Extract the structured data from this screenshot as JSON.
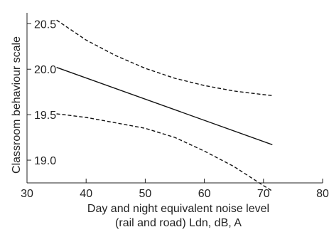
{
  "chart_data": {
    "type": "line",
    "title": "",
    "xlabel": [
      "Day and night equivalent noise level",
      "(rail and road) Ldn, dB, A"
    ],
    "ylabel": "Classroom behaviour scale",
    "xlim": [
      30,
      80
    ],
    "ylim": [
      18.75,
      20.62
    ],
    "x_ticks": [
      30,
      40,
      50,
      60,
      70,
      80
    ],
    "y_ticks": [
      19.0,
      19.5,
      20.0,
      20.5
    ],
    "x_tick_labels": [
      "30",
      "40",
      "50",
      "60",
      "70",
      "80"
    ],
    "y_tick_labels": [
      "19.0",
      "19.5",
      "20.0",
      "20.5"
    ],
    "grid": false,
    "legend": "none",
    "series": [
      {
        "role": "estimate",
        "style": "solid",
        "x": [
          35,
          71.5
        ],
        "y": [
          20.02,
          19.17
        ]
      },
      {
        "role": "upper-bound",
        "style": "dashed",
        "x": [
          35,
          40,
          45,
          50,
          55,
          60,
          65,
          70,
          71.5
        ],
        "y": [
          20.54,
          20.32,
          20.15,
          20.01,
          19.9,
          19.82,
          19.76,
          19.72,
          19.71
        ]
      },
      {
        "role": "lower-bound",
        "style": "dashed",
        "x": [
          35,
          40,
          45,
          50,
          55,
          60,
          65,
          70,
          71.5
        ],
        "y": [
          19.51,
          19.47,
          19.41,
          19.35,
          19.25,
          19.1,
          18.93,
          18.72,
          18.66
        ]
      }
    ],
    "colors": {
      "line": "#111111",
      "axis": "#222222"
    }
  }
}
